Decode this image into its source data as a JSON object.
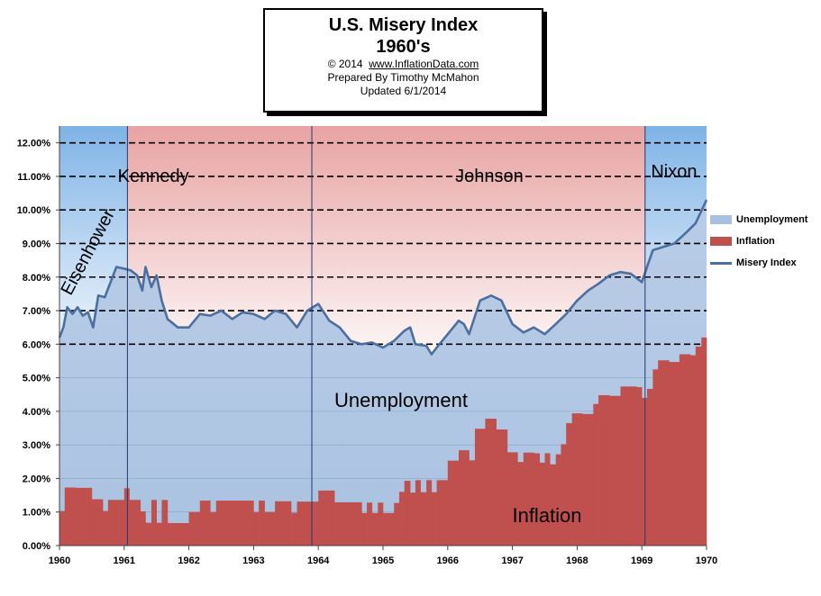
{
  "title": "U.S. Misery Index",
  "subtitle": "1960's",
  "credits": {
    "copyright": "© 2014",
    "url": "www.InflationData.com",
    "prepared": "Prepared  By Timothy McMahon",
    "updated": "Updated  6/1/2014"
  },
  "colors": {
    "unemployment": "#a9c1e0",
    "inflation": "#c0504d",
    "misery": "#4a6fa0",
    "republican_band": "#7fb3e6",
    "democrat_band": "#e8a3a3"
  },
  "legend": [
    "Unemployment",
    "Inflation",
    "Misery Index"
  ],
  "chart_data": {
    "type": "area",
    "xlim": [
      1960,
      1970
    ],
    "ylim": [
      0,
      12.5
    ],
    "x_ticks": [
      "1960",
      "1961",
      "1962",
      "1963",
      "1964",
      "1965",
      "1966",
      "1967",
      "1968",
      "1969",
      "1970"
    ],
    "y_ticks": [
      "0.00%",
      "1.00%",
      "2.00%",
      "3.00%",
      "4.00%",
      "5.00%",
      "6.00%",
      "7.00%",
      "8.00%",
      "9.00%",
      "10.00%",
      "11.00%",
      "12.00%"
    ],
    "grid": "dashed horizontal lines above 6.00%",
    "legend_position": "right",
    "presidencies": [
      {
        "name": "Eisenhower",
        "start": 1960.0,
        "end": 1961.05,
        "party": "R"
      },
      {
        "name": "Kennedy",
        "start": 1961.05,
        "end": 1963.9,
        "party": "D"
      },
      {
        "name": "Johnson",
        "start": 1963.9,
        "end": 1969.05,
        "party": "D"
      },
      {
        "name": "Nixon",
        "start": 1969.05,
        "end": 1970.0,
        "party": "R"
      }
    ],
    "annotations": {
      "unemployment": "Unemployment",
      "inflation": "Inflation"
    },
    "series": [
      {
        "name": "Inflation",
        "points": [
          [
            1960.0,
            1.03
          ],
          [
            1960.08,
            1.73
          ],
          [
            1960.25,
            1.72
          ],
          [
            1960.42,
            1.72
          ],
          [
            1960.5,
            1.38
          ],
          [
            1960.67,
            1.03
          ],
          [
            1960.75,
            1.36
          ],
          [
            1960.92,
            1.36
          ],
          [
            1961.0,
            1.71
          ],
          [
            1961.08,
            1.36
          ],
          [
            1961.25,
            1.02
          ],
          [
            1961.33,
            0.68
          ],
          [
            1961.42,
            1.36
          ],
          [
            1961.5,
            0.68
          ],
          [
            1961.58,
            1.36
          ],
          [
            1961.67,
            0.67
          ],
          [
            1962.0,
            1.0
          ],
          [
            1962.17,
            1.34
          ],
          [
            1962.33,
            1.0
          ],
          [
            1962.42,
            1.34
          ],
          [
            1963.0,
            1.0
          ],
          [
            1963.08,
            1.34
          ],
          [
            1963.17,
            1.0
          ],
          [
            1963.33,
            1.32
          ],
          [
            1963.58,
            0.98
          ],
          [
            1963.67,
            1.31
          ],
          [
            1964.0,
            1.64
          ],
          [
            1964.25,
            1.29
          ],
          [
            1964.67,
            0.97
          ],
          [
            1964.75,
            1.28
          ],
          [
            1964.83,
            0.97
          ],
          [
            1964.92,
            1.28
          ],
          [
            1965.0,
            0.97
          ],
          [
            1965.08,
            0.97
          ],
          [
            1965.17,
            1.27
          ],
          [
            1965.25,
            1.6
          ],
          [
            1965.33,
            1.93
          ],
          [
            1965.42,
            1.58
          ],
          [
            1965.5,
            1.95
          ],
          [
            1965.58,
            1.59
          ],
          [
            1965.67,
            1.95
          ],
          [
            1965.75,
            1.59
          ],
          [
            1965.83,
            1.95
          ],
          [
            1966.0,
            2.53
          ],
          [
            1966.17,
            2.84
          ],
          [
            1966.33,
            2.54
          ],
          [
            1966.42,
            3.48
          ],
          [
            1966.58,
            3.78
          ],
          [
            1966.75,
            3.46
          ],
          [
            1966.92,
            2.78
          ],
          [
            1967.08,
            2.49
          ],
          [
            1967.17,
            2.77
          ],
          [
            1967.33,
            2.75
          ],
          [
            1967.42,
            2.47
          ],
          [
            1967.5,
            2.75
          ],
          [
            1967.58,
            2.42
          ],
          [
            1967.67,
            2.72
          ],
          [
            1967.75,
            3.02
          ],
          [
            1967.83,
            3.65
          ],
          [
            1967.92,
            3.94
          ],
          [
            1968.08,
            3.92
          ],
          [
            1968.25,
            4.22
          ],
          [
            1968.33,
            4.48
          ],
          [
            1968.5,
            4.46
          ],
          [
            1968.67,
            4.74
          ],
          [
            1968.92,
            4.72
          ],
          [
            1969.0,
            4.4
          ],
          [
            1969.08,
            4.67
          ],
          [
            1969.17,
            5.25
          ],
          [
            1969.25,
            5.52
          ],
          [
            1969.42,
            5.47
          ],
          [
            1969.58,
            5.7
          ],
          [
            1969.75,
            5.67
          ],
          [
            1969.83,
            5.93
          ],
          [
            1969.92,
            6.2
          ],
          [
            1970.0,
            6.16
          ]
        ]
      },
      {
        "name": "Misery Index",
        "points": [
          [
            1960.0,
            6.2
          ],
          [
            1960.06,
            6.5
          ],
          [
            1960.12,
            7.1
          ],
          [
            1960.2,
            6.9
          ],
          [
            1960.28,
            7.1
          ],
          [
            1960.36,
            6.85
          ],
          [
            1960.44,
            6.95
          ],
          [
            1960.52,
            6.5
          ],
          [
            1960.6,
            7.45
          ],
          [
            1960.7,
            7.4
          ],
          [
            1960.8,
            7.9
          ],
          [
            1960.88,
            8.3
          ],
          [
            1961.0,
            8.25
          ],
          [
            1961.1,
            8.2
          ],
          [
            1961.2,
            8.05
          ],
          [
            1961.28,
            7.6
          ],
          [
            1961.33,
            8.3
          ],
          [
            1961.42,
            7.7
          ],
          [
            1961.5,
            8.05
          ],
          [
            1961.58,
            7.3
          ],
          [
            1961.67,
            6.75
          ],
          [
            1961.83,
            6.5
          ],
          [
            1962.0,
            6.5
          ],
          [
            1962.17,
            6.9
          ],
          [
            1962.33,
            6.85
          ],
          [
            1962.5,
            7.0
          ],
          [
            1962.67,
            6.75
          ],
          [
            1962.83,
            6.95
          ],
          [
            1963.0,
            6.9
          ],
          [
            1963.17,
            6.75
          ],
          [
            1963.33,
            7.0
          ],
          [
            1963.5,
            6.9
          ],
          [
            1963.67,
            6.5
          ],
          [
            1963.83,
            7.0
          ],
          [
            1964.0,
            7.2
          ],
          [
            1964.17,
            6.7
          ],
          [
            1964.33,
            6.5
          ],
          [
            1964.5,
            6.1
          ],
          [
            1964.67,
            6.0
          ],
          [
            1964.83,
            6.05
          ],
          [
            1965.0,
            5.9
          ],
          [
            1965.17,
            6.1
          ],
          [
            1965.33,
            6.4
          ],
          [
            1965.42,
            6.5
          ],
          [
            1965.5,
            6.0
          ],
          [
            1965.67,
            5.95
          ],
          [
            1965.75,
            5.7
          ],
          [
            1965.83,
            5.9
          ],
          [
            1966.0,
            6.3
          ],
          [
            1966.17,
            6.7
          ],
          [
            1966.25,
            6.6
          ],
          [
            1966.33,
            6.3
          ],
          [
            1966.5,
            7.3
          ],
          [
            1966.67,
            7.45
          ],
          [
            1966.83,
            7.3
          ],
          [
            1967.0,
            6.6
          ],
          [
            1967.17,
            6.35
          ],
          [
            1967.33,
            6.5
          ],
          [
            1967.5,
            6.3
          ],
          [
            1967.67,
            6.6
          ],
          [
            1967.83,
            6.9
          ],
          [
            1968.0,
            7.3
          ],
          [
            1968.17,
            7.6
          ],
          [
            1968.33,
            7.8
          ],
          [
            1968.5,
            8.05
          ],
          [
            1968.67,
            8.15
          ],
          [
            1968.83,
            8.1
          ],
          [
            1969.0,
            7.85
          ],
          [
            1969.17,
            8.8
          ],
          [
            1969.33,
            8.9
          ],
          [
            1969.5,
            9.0
          ],
          [
            1969.67,
            9.3
          ],
          [
            1969.83,
            9.6
          ],
          [
            1970.0,
            10.3
          ]
        ]
      }
    ]
  }
}
